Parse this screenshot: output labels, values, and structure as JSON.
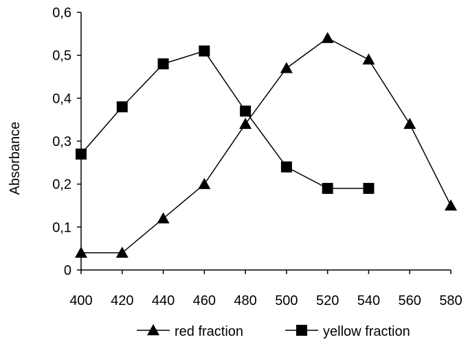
{
  "chart_data": {
    "type": "line",
    "title": "",
    "xlabel": "",
    "ylabel": "Absorbance",
    "xlim": [
      400,
      580
    ],
    "ylim": [
      0,
      0.6
    ],
    "x_ticks": [
      400,
      420,
      440,
      460,
      480,
      500,
      520,
      540,
      560,
      580
    ],
    "y_ticks": [
      0,
      0.1,
      0.2,
      0.3,
      0.4,
      0.5,
      0.6
    ],
    "y_tick_labels": [
      "0",
      "0,1",
      "0,2",
      "0,3",
      "0,4",
      "0,5",
      "0,6"
    ],
    "grid": false,
    "legend_position": "bottom",
    "series": [
      {
        "name": "red fraction",
        "marker": "triangle",
        "color": "#000000",
        "x": [
          400,
          420,
          440,
          460,
          480,
          500,
          520,
          540,
          560,
          580
        ],
        "y": [
          0.04,
          0.04,
          0.12,
          0.2,
          0.34,
          0.47,
          0.54,
          0.49,
          0.34,
          0.15
        ]
      },
      {
        "name": "yellow fraction",
        "marker": "square",
        "color": "#000000",
        "x": [
          400,
          420,
          440,
          460,
          480,
          500,
          520,
          540
        ],
        "y": [
          0.27,
          0.38,
          0.48,
          0.51,
          0.37,
          0.24,
          0.19,
          0.19
        ]
      }
    ]
  }
}
